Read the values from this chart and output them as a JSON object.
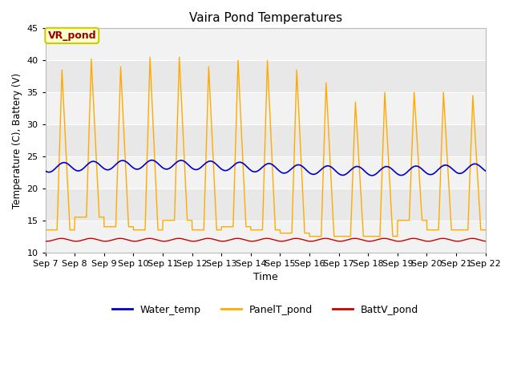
{
  "title": "Vaira Pond Temperatures",
  "xlabel": "Time",
  "ylabel": "Temperature (C), Battery (V)",
  "ylim": [
    10,
    45
  ],
  "tick_labels": [
    "Sep 7",
    "Sep 8",
    "Sep 9",
    "Sep 10",
    "Sep 11",
    "Sep 12",
    "Sep 13",
    "Sep 14",
    "Sep 15",
    "Sep 16",
    "Sep 17",
    "Sep 18",
    "Sep 19",
    "Sep 20",
    "Sep 21",
    "Sep 22"
  ],
  "legend_labels": [
    "Water_temp",
    "PanelT_pond",
    "BattV_pond"
  ],
  "annotation_text": "VR_pond",
  "annotation_color": "#990000",
  "annotation_bg": "#ffffcc",
  "annotation_edge": "#cccc00",
  "fig_bg": "#ffffff",
  "plot_bg": "#e8e8e8",
  "band_color": "#f2f2f2",
  "water_temp_color": "#0000cc",
  "panel_temp_color": "#ffaa00",
  "batt_color": "#cc0000",
  "yticks": [
    10,
    15,
    20,
    25,
    30,
    35,
    40,
    45
  ]
}
